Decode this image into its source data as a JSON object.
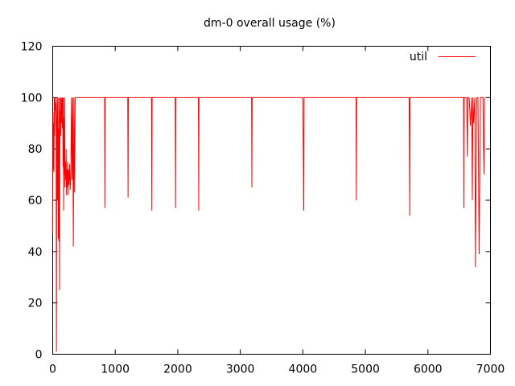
{
  "chart_data": {
    "type": "line",
    "title": "dm-0 overall usage (%)",
    "xlabel": "",
    "ylabel": "",
    "xlim": [
      0,
      7000
    ],
    "ylim": [
      0,
      120
    ],
    "xticks": [
      0,
      1000,
      2000,
      3000,
      4000,
      5000,
      6000,
      7000
    ],
    "yticks": [
      0,
      20,
      40,
      60,
      80,
      100,
      120
    ],
    "grid": false,
    "legend_position": "top-right",
    "series": [
      {
        "name": "util",
        "color": "#ff0000",
        "x": [
          0,
          5,
          10,
          15,
          20,
          25,
          30,
          35,
          40,
          45,
          50,
          55,
          60,
          65,
          70,
          75,
          80,
          85,
          90,
          95,
          100,
          105,
          110,
          115,
          120,
          125,
          130,
          135,
          140,
          145,
          150,
          155,
          160,
          165,
          170,
          175,
          180,
          185,
          190,
          195,
          200,
          205,
          210,
          215,
          220,
          225,
          230,
          235,
          240,
          245,
          250,
          260,
          270,
          280,
          290,
          300,
          310,
          320,
          330,
          340,
          350,
          360,
          370,
          380,
          390,
          400,
          410,
          420,
          430,
          440,
          450,
          460,
          470,
          480,
          490,
          500,
          600,
          700,
          800,
          830,
          835,
          840,
          900,
          1000,
          1100,
          1200,
          1205,
          1210,
          1300,
          1400,
          1500,
          1580,
          1585,
          1590,
          1700,
          1800,
          1900,
          1960,
          1965,
          1970,
          2100,
          2200,
          2300,
          2330,
          2335,
          2340,
          2500,
          2700,
          2900,
          3100,
          3180,
          3185,
          3190,
          3400,
          3600,
          3800,
          4000,
          4015,
          4020,
          4200,
          4400,
          4600,
          4800,
          4850,
          4855,
          4860,
          5100,
          5300,
          5500,
          5700,
          5710,
          5715,
          5900,
          6100,
          6300,
          6500,
          6570,
          6575,
          6580,
          6620,
          6630,
          6640,
          6660,
          6680,
          6700,
          6710,
          6720,
          6730,
          6750,
          6760,
          6780,
          6800,
          6820,
          6840,
          6860,
          6880,
          6890,
          6900,
          6905
        ],
        "values": [
          47,
          94,
          72,
          90,
          71,
          100,
          85,
          100,
          100,
          95,
          98,
          85,
          1,
          90,
          100,
          60,
          72,
          100,
          45,
          88,
          44,
          100,
          25,
          95,
          90,
          100,
          85,
          100,
          90,
          92,
          100,
          88,
          100,
          73,
          100,
          56,
          92,
          70,
          100,
          65,
          70,
          75,
          68,
          80,
          62,
          72,
          65,
          70,
          75,
          62,
          72,
          66,
          74,
          64,
          70,
          100,
          68,
          100,
          42,
          100,
          63,
          100,
          100,
          100,
          100,
          100,
          100,
          100,
          100,
          100,
          100,
          100,
          100,
          100,
          100,
          100,
          100,
          100,
          100,
          100,
          57,
          100,
          100,
          100,
          100,
          100,
          61,
          100,
          100,
          100,
          100,
          100,
          56,
          100,
          100,
          100,
          100,
          100,
          57,
          100,
          100,
          100,
          100,
          100,
          56,
          100,
          100,
          100,
          100,
          100,
          100,
          65,
          100,
          100,
          100,
          100,
          100,
          56,
          100,
          100,
          100,
          100,
          100,
          100,
          60,
          100,
          100,
          100,
          100,
          100,
          54,
          100,
          100,
          100,
          100,
          100,
          100,
          57,
          100,
          100,
          77,
          100,
          100,
          89,
          100,
          60,
          100,
          90,
          100,
          34,
          100,
          100,
          39,
          100,
          100,
          100,
          80,
          70,
          100
        ]
      }
    ]
  }
}
